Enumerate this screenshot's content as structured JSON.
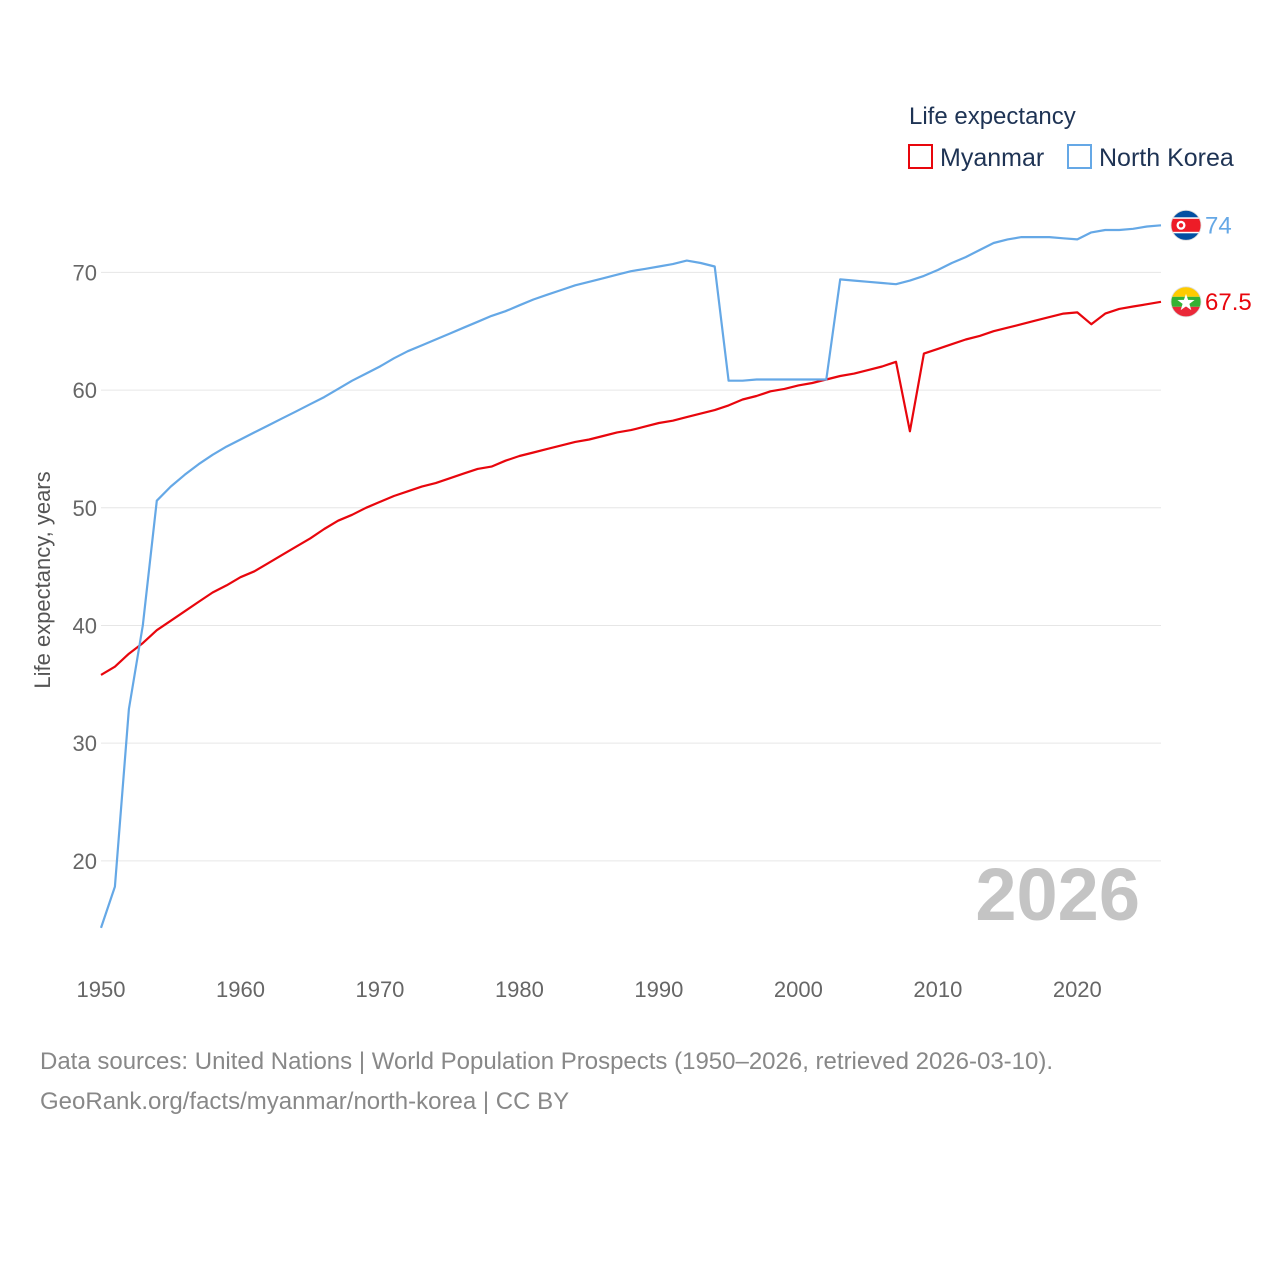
{
  "chart_data": {
    "type": "line",
    "ylabel": "Life expectancy, years",
    "xlabel": "",
    "xlim": [
      1950,
      2026
    ],
    "ylim": [
      12,
      77
    ],
    "x_ticks": [
      1950,
      1960,
      1970,
      1980,
      1990,
      2000,
      2010,
      2020
    ],
    "y_ticks": [
      20,
      30,
      40,
      50,
      60,
      70
    ],
    "grid": true,
    "legend": {
      "title": "Life expectancy",
      "placement": "top-right"
    },
    "current_year": "2026",
    "series": [
      {
        "name": "Myanmar",
        "color": "#e8060d",
        "end_label": "67.5",
        "flag_icon": "myanmar-flag-icon",
        "points": [
          [
            1950,
            35.8
          ],
          [
            1951,
            36.5
          ],
          [
            1952,
            37.6
          ],
          [
            1953,
            38.5
          ],
          [
            1954,
            39.6
          ],
          [
            1955,
            40.4
          ],
          [
            1956,
            41.2
          ],
          [
            1957,
            42.0
          ],
          [
            1958,
            42.8
          ],
          [
            1959,
            43.4
          ],
          [
            1960,
            44.1
          ],
          [
            1961,
            44.6
          ],
          [
            1962,
            45.3
          ],
          [
            1963,
            46.0
          ],
          [
            1964,
            46.7
          ],
          [
            1965,
            47.4
          ],
          [
            1966,
            48.2
          ],
          [
            1967,
            48.9
          ],
          [
            1968,
            49.4
          ],
          [
            1969,
            50.0
          ],
          [
            1970,
            50.5
          ],
          [
            1971,
            51.0
          ],
          [
            1972,
            51.4
          ],
          [
            1973,
            51.8
          ],
          [
            1974,
            52.1
          ],
          [
            1975,
            52.5
          ],
          [
            1976,
            52.9
          ],
          [
            1977,
            53.3
          ],
          [
            1978,
            53.5
          ],
          [
            1979,
            54.0
          ],
          [
            1980,
            54.4
          ],
          [
            1981,
            54.7
          ],
          [
            1982,
            55.0
          ],
          [
            1983,
            55.3
          ],
          [
            1984,
            55.6
          ],
          [
            1985,
            55.8
          ],
          [
            1986,
            56.1
          ],
          [
            1987,
            56.4
          ],
          [
            1988,
            56.6
          ],
          [
            1989,
            56.9
          ],
          [
            1990,
            57.2
          ],
          [
            1991,
            57.4
          ],
          [
            1992,
            57.7
          ],
          [
            1993,
            58.0
          ],
          [
            1994,
            58.3
          ],
          [
            1995,
            58.7
          ],
          [
            1996,
            59.2
          ],
          [
            1997,
            59.5
          ],
          [
            1998,
            59.9
          ],
          [
            1999,
            60.1
          ],
          [
            2000,
            60.4
          ],
          [
            2001,
            60.6
          ],
          [
            2002,
            60.9
          ],
          [
            2003,
            61.2
          ],
          [
            2004,
            61.4
          ],
          [
            2005,
            61.7
          ],
          [
            2006,
            62.0
          ],
          [
            2007,
            62.4
          ],
          [
            2008,
            56.5
          ],
          [
            2009,
            63.1
          ],
          [
            2010,
            63.5
          ],
          [
            2011,
            63.9
          ],
          [
            2012,
            64.3
          ],
          [
            2013,
            64.6
          ],
          [
            2014,
            65.0
          ],
          [
            2015,
            65.3
          ],
          [
            2016,
            65.6
          ],
          [
            2017,
            65.9
          ],
          [
            2018,
            66.2
          ],
          [
            2019,
            66.5
          ],
          [
            2020,
            66.6
          ],
          [
            2021,
            65.6
          ],
          [
            2022,
            66.5
          ],
          [
            2023,
            66.9
          ],
          [
            2024,
            67.1
          ],
          [
            2025,
            67.3
          ],
          [
            2026,
            67.5
          ]
        ]
      },
      {
        "name": "North Korea",
        "color": "#65a8e6",
        "end_label": "74",
        "flag_icon": "north-korea-flag-icon",
        "points": [
          [
            1950,
            14.3
          ],
          [
            1951,
            17.8
          ],
          [
            1952,
            32.9
          ],
          [
            1953,
            40.0
          ],
          [
            1954,
            50.6
          ],
          [
            1955,
            51.8
          ],
          [
            1956,
            52.8
          ],
          [
            1957,
            53.7
          ],
          [
            1958,
            54.5
          ],
          [
            1959,
            55.2
          ],
          [
            1960,
            55.8
          ],
          [
            1961,
            56.4
          ],
          [
            1962,
            57.0
          ],
          [
            1963,
            57.6
          ],
          [
            1964,
            58.2
          ],
          [
            1965,
            58.8
          ],
          [
            1966,
            59.4
          ],
          [
            1967,
            60.1
          ],
          [
            1968,
            60.8
          ],
          [
            1969,
            61.4
          ],
          [
            1970,
            62.0
          ],
          [
            1971,
            62.7
          ],
          [
            1972,
            63.3
          ],
          [
            1973,
            63.8
          ],
          [
            1974,
            64.3
          ],
          [
            1975,
            64.8
          ],
          [
            1976,
            65.3
          ],
          [
            1977,
            65.8
          ],
          [
            1978,
            66.3
          ],
          [
            1979,
            66.7
          ],
          [
            1980,
            67.2
          ],
          [
            1981,
            67.7
          ],
          [
            1982,
            68.1
          ],
          [
            1983,
            68.5
          ],
          [
            1984,
            68.9
          ],
          [
            1985,
            69.2
          ],
          [
            1986,
            69.5
          ],
          [
            1987,
            69.8
          ],
          [
            1988,
            70.1
          ],
          [
            1989,
            70.3
          ],
          [
            1990,
            70.5
          ],
          [
            1991,
            70.7
          ],
          [
            1992,
            71.0
          ],
          [
            1993,
            70.8
          ],
          [
            1994,
            70.5
          ],
          [
            1995,
            60.8
          ],
          [
            1996,
            60.8
          ],
          [
            1997,
            60.9
          ],
          [
            1998,
            60.9
          ],
          [
            1999,
            60.9
          ],
          [
            2000,
            60.9
          ],
          [
            2001,
            60.9
          ],
          [
            2002,
            60.9
          ],
          [
            2003,
            69.4
          ],
          [
            2004,
            69.3
          ],
          [
            2005,
            69.2
          ],
          [
            2006,
            69.1
          ],
          [
            2007,
            69.0
          ],
          [
            2008,
            69.3
          ],
          [
            2009,
            69.7
          ],
          [
            2010,
            70.2
          ],
          [
            2011,
            70.8
          ],
          [
            2012,
            71.3
          ],
          [
            2013,
            71.9
          ],
          [
            2014,
            72.5
          ],
          [
            2015,
            72.8
          ],
          [
            2016,
            73.0
          ],
          [
            2017,
            73.0
          ],
          [
            2018,
            73.0
          ],
          [
            2019,
            72.9
          ],
          [
            2020,
            72.8
          ],
          [
            2021,
            73.4
          ],
          [
            2022,
            73.6
          ],
          [
            2023,
            73.6
          ],
          [
            2024,
            73.7
          ],
          [
            2025,
            73.9
          ],
          [
            2026,
            74.0
          ]
        ]
      }
    ]
  },
  "footer": {
    "source_line": "Data sources: United Nations | World Population Prospects (1950–2026, retrieved 2026-03-10).",
    "credit_line": "GeoRank.org/facts/myanmar/north-korea | CC BY"
  }
}
